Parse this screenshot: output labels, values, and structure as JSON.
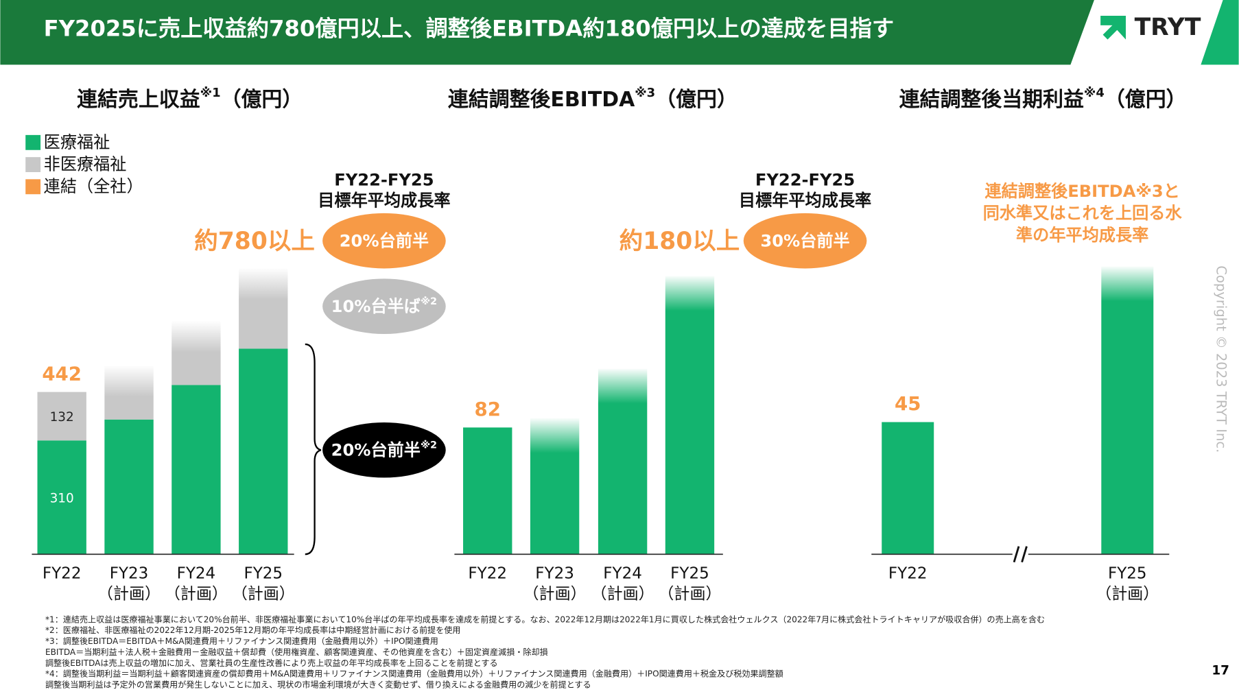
{
  "header": {
    "title": "FY2025に売上収益約780億円以上、調整後EBITDA約180億円以上の達成を目指す",
    "logo": "TRYT"
  },
  "chart_data": [
    {
      "type": "stacked_bar",
      "title": "連結売上収益",
      "title_note": "※1",
      "title_unit": "（億円）",
      "categories": [
        "FY22",
        "FY23",
        "FY24",
        "FY25"
      ],
      "category_sublabels": [
        null,
        "（計画）",
        "（計画）",
        "（計画）"
      ],
      "ylim": [
        0,
        800
      ],
      "series": [
        {
          "name": "医療福祉",
          "color": "#13b46f",
          "values": [
            310,
            367,
            461,
            560
          ],
          "value_labels": [
            "310",
            null,
            null,
            null
          ]
        },
        {
          "name": "非医療福祉",
          "color": "#c8c8c8",
          "values": [
            132,
            146,
            173,
            218
          ],
          "value_labels": [
            "132",
            null,
            null,
            null
          ]
        }
      ],
      "totals": {
        "name": "連結（全社）",
        "color": "#f79a46",
        "values": [
          442,
          null,
          null,
          null
        ]
      },
      "headline": "約780以上",
      "cagr_title": [
        "FY22-FY25",
        "目標年平均成長率"
      ],
      "bubbles": [
        {
          "text": "20%台前半",
          "note": null,
          "color": "#f79a46"
        },
        {
          "text": "10%台半ば",
          "note": "※2",
          "color": "#bfbfbf"
        },
        {
          "text": "20%台前半",
          "note": "※2",
          "color": "#000000"
        }
      ]
    },
    {
      "type": "bar",
      "title": "連結調整後EBITDA",
      "title_note": "※3",
      "title_unit": "（億円）",
      "categories": [
        "FY22",
        "FY23",
        "FY24",
        "FY25"
      ],
      "category_sublabels": [
        null,
        "（計画）",
        "（計画）",
        "（計画）"
      ],
      "ylim": [
        0,
        190
      ],
      "color": "#13b46f",
      "values": [
        82,
        88,
        120,
        180
      ],
      "value_labels": [
        "82",
        null,
        null,
        null
      ],
      "label_color": "#f79a46",
      "headline": "約180以上",
      "cagr_title": [
        "FY22-FY25",
        "目標年平均成長率"
      ],
      "bubbles": [
        {
          "text": "30%台前半",
          "note": null,
          "color": "#f79a46"
        }
      ]
    },
    {
      "type": "bar",
      "title": "連結調整後当期利益",
      "title_note": "※4",
      "title_unit": "（億円）",
      "categories": [
        "FY22",
        "FY25"
      ],
      "category_sublabels": [
        null,
        "（計画）"
      ],
      "ylim": [
        0,
        100
      ],
      "color": "#13b46f",
      "values": [
        45,
        98
      ],
      "value_labels": [
        "45",
        null
      ],
      "label_color": "#f79a46",
      "axis_break": true,
      "note_lines": [
        "連結調整後EBITDA※3と",
        "同水準又はこれを上回る水",
        "準の年平均成長率"
      ]
    }
  ],
  "footnotes": [
    "*1：連結売上収益は医療福祉事業において20%台前半、非医療福祉事業において10%台半ばの年平均成長率を達成を前提とする。なお、2022年12月期は2022年1月に買収した株式会社ウェルクス（2022年7月に株式会社トライトキャリアが吸収合併）の売上高を含む",
    "*2：医療福祉、非医療福祉の2022年12月期-2025年12月期の年平均成長率は中期経営計画における前提を使用",
    "*3：調整後EBITDA＝EBITDA＋M&A関連費用＋リファイナンス関連費用（金融費用以外）＋IPO関連費用",
    "EBITDA＝当期利益＋法人税＋金融費用－金融収益＋償却費（使用権資産、顧客関連資産、その他資産を含む）＋固定資産減損・除却損",
    "調整後EBITDAは売上収益の増加に加え、営業社員の生産性改善により売上収益の年平均成長率を上回ることを前提とする",
    "*4：調整後当期利益＝当期利益＋顧客関連資産の償却費用＋M&A関連費用＋リファイナンス関連費用（金融費用以外）＋リファイナンス関連費用（金融費用）＋IPO関連費用＋税金及び税効果調整額",
    "調整後当期利益は予定外の営業費用が発生しないことに加え、現状の市場金利環境が大きく変動せず、借り換えによる金融費用の減少を前提とする"
  ],
  "page_number": "17",
  "copyright": "Copyright © 2023 TRYT Inc."
}
